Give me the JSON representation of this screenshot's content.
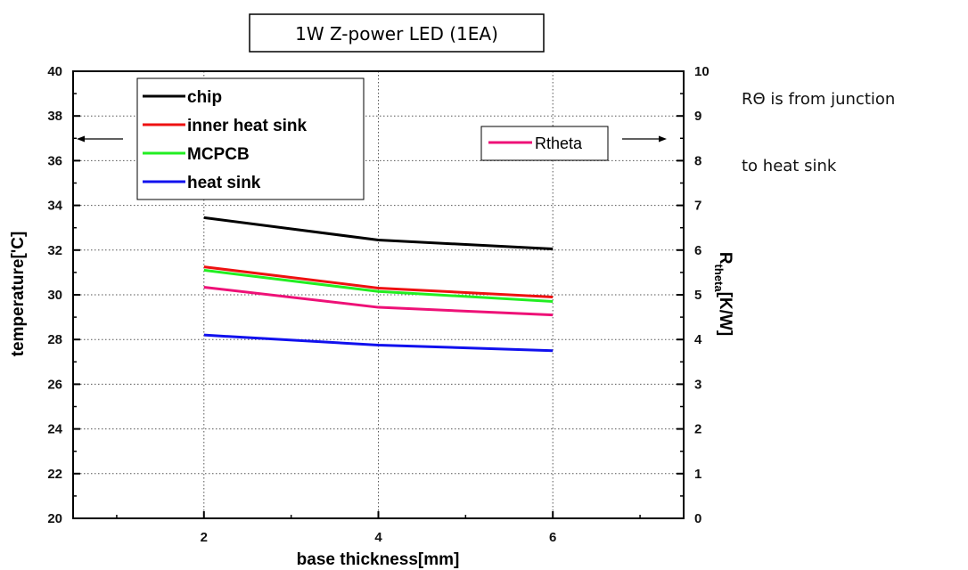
{
  "chart_data": {
    "type": "line",
    "title": "1W Z-power LED (1EA)",
    "xlabel": "base thickness[mm]",
    "ylabel": "temperature['C]",
    "y2label_main": "R",
    "y2label_sub": "theta",
    "y2label_unit": "[K/W]",
    "xlim": [
      0.5,
      7.5
    ],
    "ylim": [
      20,
      40
    ],
    "y2lim": [
      0,
      10
    ],
    "x_ticks": [
      "2",
      "4",
      "6"
    ],
    "y_ticks": [
      "20",
      "22",
      "24",
      "26",
      "28",
      "30",
      "32",
      "34",
      "36",
      "38",
      "40"
    ],
    "y2_ticks": [
      "0",
      "1",
      "2",
      "3",
      "4",
      "5",
      "6",
      "7",
      "8",
      "9",
      "10"
    ],
    "grid": true,
    "x": [
      2,
      4,
      6
    ],
    "series": [
      {
        "name": "chip",
        "axis": "left",
        "color": "#000000",
        "values": [
          33.45,
          32.45,
          32.05
        ]
      },
      {
        "name": "inner heat sink",
        "axis": "left",
        "color": "#ee1111",
        "values": [
          31.25,
          30.3,
          29.9
        ]
      },
      {
        "name": "MCPCB",
        "axis": "left",
        "color": "#22ee22",
        "values": [
          31.1,
          30.15,
          29.7
        ]
      },
      {
        "name": "heat sink",
        "axis": "left",
        "color": "#1111ee",
        "values": [
          28.2,
          27.75,
          27.5
        ]
      },
      {
        "name": "Rtheta",
        "axis": "right",
        "color": "#ee1177",
        "values": [
          5.17,
          4.72,
          4.55
        ]
      }
    ],
    "legend_left_placement": "top-left",
    "legend_right_placement": "top-right",
    "annotations": [
      "RΘ is from junction",
      "to heat sink"
    ]
  }
}
